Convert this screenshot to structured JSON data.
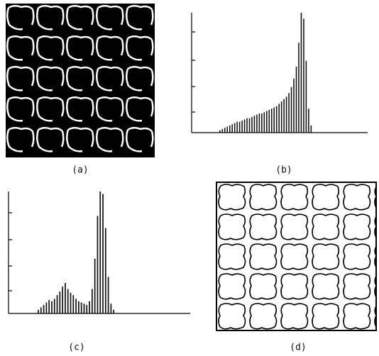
{
  "panels": [
    {
      "label": "(a)"
    },
    {
      "label": "(b)",
      "type": "bar",
      "ylim": [
        0,
        100
      ],
      "values": [
        2,
        3,
        4,
        5,
        6,
        7,
        8,
        9,
        9,
        10,
        11,
        12,
        12,
        13,
        14,
        15,
        16,
        16,
        17,
        18,
        19,
        20,
        21,
        22,
        24,
        26,
        28,
        30,
        33,
        38,
        45,
        55,
        75,
        100,
        95,
        60,
        20,
        6
      ]
    },
    {
      "label": "(c)",
      "type": "bar",
      "ylim": [
        0,
        100
      ],
      "values": [
        3,
        5,
        7,
        9,
        11,
        10,
        12,
        15,
        18,
        22,
        25,
        20,
        17,
        15,
        12,
        10,
        9,
        8,
        7,
        10,
        20,
        45,
        80,
        100,
        98,
        70,
        30,
        8,
        3
      ]
    },
    {
      "label": "(d)"
    }
  ]
}
